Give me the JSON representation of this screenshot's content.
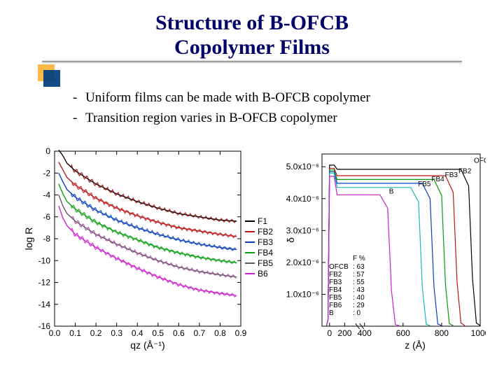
{
  "title_line1": "Structure of B-OFCB",
  "title_line2": "Copolymer Films",
  "title_color": "#000068",
  "title_fontsize": 30,
  "bullet1": "Uniform films can be made with B-OFCB copolymer",
  "bullet2": "Transition region varies in B-OFCB copolymer",
  "accent": {
    "front": "#003e7e",
    "back": "#ffb84a"
  },
  "chartL": {
    "type": "line",
    "xlabel": "qz (Å⁻¹)",
    "ylabel": "log R",
    "xlim": [
      0.0,
      0.9
    ],
    "ylim": [
      -16,
      0
    ],
    "xticks": [
      0.0,
      0.1,
      0.2,
      0.3,
      0.4,
      0.5,
      0.6,
      0.7,
      0.8,
      0.9
    ],
    "yticks": [
      0,
      -2,
      -4,
      -6,
      -8,
      -10,
      -12,
      -14,
      -16
    ],
    "tick_fontsize": 12,
    "label_fontsize": 14,
    "legend_fontsize": 11,
    "background_color": "#ffffff",
    "frame_color": "#000000",
    "jitter_amp": 0.22,
    "jitter_period": 0.025,
    "series": [
      {
        "name": "F1",
        "color": "#000000",
        "scatter": "#b00000",
        "disp": "F1",
        "pts": [
          [
            0.02,
            0.1
          ],
          [
            0.04,
            -0.4
          ],
          [
            0.06,
            -1.1
          ],
          [
            0.1,
            -1.8
          ],
          [
            0.15,
            -2.4
          ],
          [
            0.2,
            -3.0
          ],
          [
            0.3,
            -3.9
          ],
          [
            0.4,
            -4.6
          ],
          [
            0.5,
            -5.2
          ],
          [
            0.6,
            -5.7
          ],
          [
            0.7,
            -6.0
          ],
          [
            0.8,
            -6.3
          ],
          [
            0.88,
            -6.4
          ]
        ]
      },
      {
        "name": "FB2",
        "color": "#c01515",
        "scatter": "#c01515",
        "disp": "FB2",
        "pts": [
          [
            0.02,
            -1.0
          ],
          [
            0.04,
            -1.7
          ],
          [
            0.06,
            -2.4
          ],
          [
            0.1,
            -3.1
          ],
          [
            0.15,
            -3.7
          ],
          [
            0.2,
            -4.3
          ],
          [
            0.3,
            -5.2
          ],
          [
            0.4,
            -5.9
          ],
          [
            0.5,
            -6.5
          ],
          [
            0.6,
            -7.0
          ],
          [
            0.7,
            -7.3
          ],
          [
            0.8,
            -7.6
          ],
          [
            0.88,
            -7.8
          ]
        ]
      },
      {
        "name": "FB3",
        "color": "#0a40c0",
        "scatter": "#0a40c0",
        "disp": "FB3",
        "pts": [
          [
            0.02,
            -2.0
          ],
          [
            0.04,
            -2.8
          ],
          [
            0.06,
            -3.5
          ],
          [
            0.1,
            -4.2
          ],
          [
            0.15,
            -4.8
          ],
          [
            0.2,
            -5.4
          ],
          [
            0.3,
            -6.3
          ],
          [
            0.4,
            -7.0
          ],
          [
            0.5,
            -7.6
          ],
          [
            0.6,
            -8.1
          ],
          [
            0.7,
            -8.5
          ],
          [
            0.8,
            -8.8
          ],
          [
            0.88,
            -9.0
          ]
        ]
      },
      {
        "name": "FB4",
        "color": "#0aa010",
        "scatter": "#0aa010",
        "disp": "FB4",
        "pts": [
          [
            0.02,
            -3.0
          ],
          [
            0.04,
            -3.9
          ],
          [
            0.06,
            -4.6
          ],
          [
            0.1,
            -5.3
          ],
          [
            0.15,
            -5.9
          ],
          [
            0.2,
            -6.5
          ],
          [
            0.3,
            -7.4
          ],
          [
            0.4,
            -8.1
          ],
          [
            0.5,
            -8.8
          ],
          [
            0.6,
            -9.3
          ],
          [
            0.7,
            -9.7
          ],
          [
            0.8,
            -10.0
          ],
          [
            0.88,
            -10.2
          ]
        ]
      },
      {
        "name": "FB5",
        "color": "#5a5a5a",
        "scatter": "#b040b0",
        "disp": "FB5",
        "pts": [
          [
            0.02,
            -4.0
          ],
          [
            0.04,
            -5.0
          ],
          [
            0.06,
            -5.7
          ],
          [
            0.1,
            -6.4
          ],
          [
            0.15,
            -7.0
          ],
          [
            0.2,
            -7.6
          ],
          [
            0.3,
            -8.5
          ],
          [
            0.4,
            -9.3
          ],
          [
            0.5,
            -10.0
          ],
          [
            0.6,
            -10.6
          ],
          [
            0.7,
            -11.0
          ],
          [
            0.8,
            -11.3
          ],
          [
            0.88,
            -11.5
          ]
        ]
      },
      {
        "name": "B6",
        "color": "#cc20cc",
        "scatter": "#cc20cc",
        "disp": "B6",
        "pts": [
          [
            0.02,
            -5.0
          ],
          [
            0.04,
            -6.1
          ],
          [
            0.06,
            -6.8
          ],
          [
            0.1,
            -7.6
          ],
          [
            0.15,
            -8.2
          ],
          [
            0.2,
            -8.8
          ],
          [
            0.3,
            -9.8
          ],
          [
            0.4,
            -10.7
          ],
          [
            0.5,
            -11.5
          ],
          [
            0.6,
            -12.2
          ],
          [
            0.7,
            -12.7
          ],
          [
            0.8,
            -13.0
          ],
          [
            0.88,
            -13.2
          ]
        ]
      }
    ]
  },
  "chartR": {
    "type": "line",
    "xlabel": "z (Å)",
    "ylabel": "δ",
    "xlim": [
      -100,
      1000
    ],
    "ylim": [
      0,
      5.4
    ],
    "y_unit_exp": -6,
    "xticks": [
      0,
      200,
      400,
      600,
      800,
      1000
    ],
    "yticks": [
      1.0,
      2.0,
      3.0,
      4.0,
      5.0
    ],
    "ytick_labels": [
      "1.0x10⁻⁶",
      "2.0x10⁻⁶",
      "3.0x10⁻⁶",
      "4.0x10⁻⁶",
      "5.0x10⁻⁶"
    ],
    "tick_fontsize": 11,
    "label_fontsize": 13,
    "background_color": "#ffffff",
    "frame_color": "#000000",
    "break_at": 360,
    "series": [
      {
        "name": "OFCB",
        "disp": "OFCB",
        "label_xy": [
          960,
          5.08
        ],
        "color": "#000000",
        "pts": [
          [
            -40,
            0.02
          ],
          [
            -20,
            0.2
          ],
          [
            -10,
            2.7
          ],
          [
            0,
            5.05
          ],
          [
            60,
            5.05
          ],
          [
            100,
            4.92
          ],
          [
            900,
            4.92
          ],
          [
            940,
            4.4
          ],
          [
            960,
            1.5
          ],
          [
            980,
            0.1
          ],
          [
            1000,
            0.02
          ]
        ]
      },
      {
        "name": "FB2",
        "disp": "FB2",
        "label_xy": [
          880,
          4.75
        ],
        "color": "#c01515",
        "pts": [
          [
            -40,
            0.02
          ],
          [
            -20,
            0.2
          ],
          [
            -10,
            2.6
          ],
          [
            0,
            4.95
          ],
          [
            60,
            4.95
          ],
          [
            100,
            4.72
          ],
          [
            820,
            4.72
          ],
          [
            860,
            4.2
          ],
          [
            880,
            1.4
          ],
          [
            900,
            0.1
          ],
          [
            920,
            0.02
          ]
        ]
      },
      {
        "name": "FB3",
        "disp": "FB3",
        "label_xy": [
          810,
          4.63
        ],
        "color": "#0a9b0a",
        "pts": [
          [
            -40,
            0.02
          ],
          [
            -20,
            0.2
          ],
          [
            -10,
            2.6
          ],
          [
            0,
            4.9
          ],
          [
            60,
            4.9
          ],
          [
            100,
            4.6
          ],
          [
            760,
            4.6
          ],
          [
            800,
            4.1
          ],
          [
            820,
            1.3
          ],
          [
            840,
            0.08
          ],
          [
            860,
            0.02
          ]
        ]
      },
      {
        "name": "FB4",
        "disp": "FB4",
        "label_xy": [
          740,
          4.5
        ],
        "color": "#0a40c0",
        "pts": [
          [
            -40,
            0.02
          ],
          [
            -20,
            0.2
          ],
          [
            -10,
            2.55
          ],
          [
            0,
            4.85
          ],
          [
            60,
            4.85
          ],
          [
            100,
            4.48
          ],
          [
            700,
            4.48
          ],
          [
            740,
            4.0
          ],
          [
            760,
            1.25
          ],
          [
            780,
            0.07
          ],
          [
            800,
            0.02
          ]
        ]
      },
      {
        "name": "FB5",
        "disp": "FB5",
        "label_xy": [
          670,
          4.35
        ],
        "color": "#18b8b8",
        "pts": [
          [
            -40,
            0.02
          ],
          [
            -20,
            0.2
          ],
          [
            -10,
            2.5
          ],
          [
            0,
            4.8
          ],
          [
            60,
            4.8
          ],
          [
            100,
            4.35
          ],
          [
            640,
            4.35
          ],
          [
            680,
            3.9
          ],
          [
            700,
            1.2
          ],
          [
            720,
            0.06
          ],
          [
            740,
            0.02
          ]
        ]
      },
      {
        "name": "B",
        "disp": "B",
        "label_xy": [
          520,
          4.12
        ],
        "color": "#cc20cc",
        "pts": [
          [
            -40,
            0.02
          ],
          [
            -20,
            0.2
          ],
          [
            -10,
            2.4
          ],
          [
            0,
            4.7
          ],
          [
            60,
            4.7
          ],
          [
            100,
            4.12
          ],
          [
            480,
            4.12
          ],
          [
            520,
            3.7
          ],
          [
            540,
            1.1
          ],
          [
            560,
            0.05
          ],
          [
            580,
            0.02
          ]
        ]
      }
    ],
    "inset": {
      "header": "F %",
      "rows": [
        [
          "OFCB",
          "63"
        ],
        [
          "FB2",
          "57"
        ],
        [
          "FB3",
          "55"
        ],
        [
          "FB4",
          "43"
        ],
        [
          "FB5",
          "40"
        ],
        [
          "FB6",
          "29"
        ],
        [
          "B",
          "0"
        ]
      ],
      "fontsize": 9
    }
  }
}
